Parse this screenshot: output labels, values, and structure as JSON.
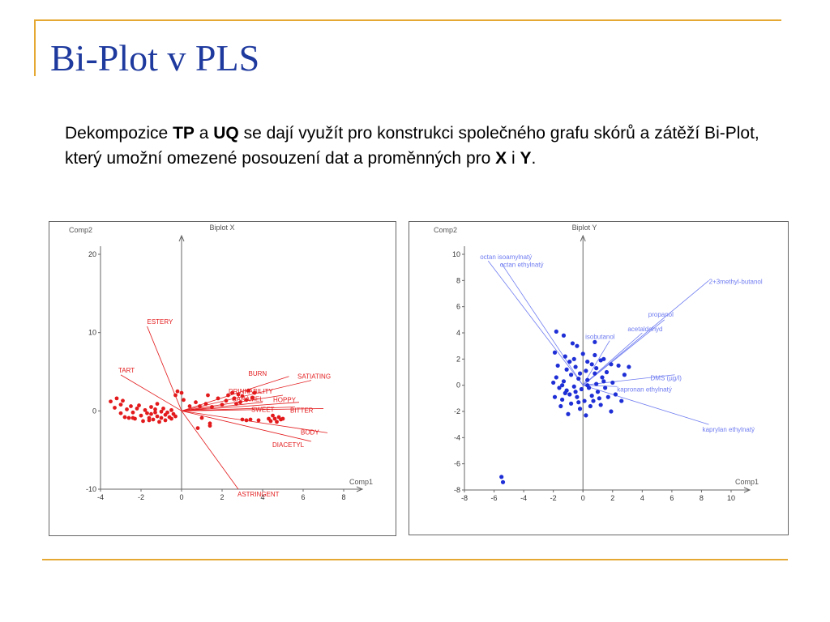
{
  "slide": {
    "title": "Bi-Plot v PLS",
    "text": {
      "p1": "Dekompozice ",
      "tp": "TP",
      "p2": " a ",
      "uq": "UQ",
      "p3": " se dají využít pro konstrukci společného grafu skórů a zátěží Bi-Plot, který umožní omezené posouzení dat a proměnných pro ",
      "x": "X",
      "p4": " i ",
      "y": "Y",
      "p5": "."
    }
  },
  "chart_data": [
    {
      "type": "scatter",
      "title": "Biplot X",
      "xlabel": "Comp1",
      "ylabel": "Comp2",
      "xlim": [
        -4,
        8
      ],
      "ylim": [
        -10,
        20
      ],
      "xticks": [
        -4,
        -2,
        0,
        2,
        4,
        6,
        8
      ],
      "yticks": [
        -10,
        0,
        10,
        20
      ],
      "color": "#e31a1c",
      "loadings": [
        {
          "name": "ESTERY",
          "x": -1.7,
          "y": 10.8
        },
        {
          "name": "TART",
          "x": -3.0,
          "y": 4.6
        },
        {
          "name": "BURN",
          "x": 5.3,
          "y": 4.4
        },
        {
          "name": "SATIATING",
          "x": 6.4,
          "y": 3.9
        },
        {
          "name": "DRINKABILITY",
          "x": 5.0,
          "y": 2.0
        },
        {
          "name": "CARAMEL",
          "x": 4.0,
          "y": 1.1
        },
        {
          "name": "HOPPY",
          "x": 5.8,
          "y": 1.1
        },
        {
          "name": "SWEET",
          "x": 5.6,
          "y": 0.5
        },
        {
          "name": "BITTER",
          "x": 7.0,
          "y": 0.3
        },
        {
          "name": "BODY",
          "x": 7.2,
          "y": -2.8
        },
        {
          "name": "DIACETYL",
          "x": 6.4,
          "y": -3.9
        },
        {
          "name": "ASTRINGENT",
          "x": 2.8,
          "y": -10.0
        }
      ],
      "scores": [
        {
          "x": -3.5,
          "y": 1.2
        },
        {
          "x": -3.3,
          "y": 0.4
        },
        {
          "x": -3.2,
          "y": 1.6
        },
        {
          "x": -3.0,
          "y": -0.3
        },
        {
          "x": -3.0,
          "y": 0.8
        },
        {
          "x": -2.9,
          "y": 1.3
        },
        {
          "x": -2.8,
          "y": -0.8
        },
        {
          "x": -2.7,
          "y": 0.2
        },
        {
          "x": -2.6,
          "y": -0.9
        },
        {
          "x": -2.5,
          "y": 0.6
        },
        {
          "x": -2.4,
          "y": -0.2
        },
        {
          "x": -2.3,
          "y": -1.0
        },
        {
          "x": -2.2,
          "y": 0.3
        },
        {
          "x": -2.1,
          "y": 0.7
        },
        {
          "x": -2.0,
          "y": -0.6
        },
        {
          "x": -1.9,
          "y": -1.3
        },
        {
          "x": -1.8,
          "y": 0.1
        },
        {
          "x": -1.7,
          "y": -0.3
        },
        {
          "x": -1.6,
          "y": -0.9
        },
        {
          "x": -1.5,
          "y": 0.5
        },
        {
          "x": -1.5,
          "y": -0.4
        },
        {
          "x": -1.4,
          "y": -1.1
        },
        {
          "x": -1.3,
          "y": -0.2
        },
        {
          "x": -1.3,
          "y": 0.2
        },
        {
          "x": -1.2,
          "y": -0.7
        },
        {
          "x": -1.1,
          "y": -1.4
        },
        {
          "x": -1.0,
          "y": -0.1
        },
        {
          "x": -1.0,
          "y": -0.9
        },
        {
          "x": -0.9,
          "y": 0.3
        },
        {
          "x": -0.8,
          "y": -0.5
        },
        {
          "x": -0.8,
          "y": -1.2
        },
        {
          "x": -0.7,
          "y": -0.2
        },
        {
          "x": -0.6,
          "y": -0.8
        },
        {
          "x": -0.5,
          "y": 0.1
        },
        {
          "x": -0.5,
          "y": -1.0
        },
        {
          "x": -0.4,
          "y": -0.4
        },
        {
          "x": -0.3,
          "y": -0.7
        },
        {
          "x": -0.3,
          "y": 2.0
        },
        {
          "x": -0.2,
          "y": 2.5
        },
        {
          "x": 0.0,
          "y": 2.3
        },
        {
          "x": 0.1,
          "y": 1.4
        },
        {
          "x": 0.4,
          "y": 0.6
        },
        {
          "x": 0.7,
          "y": 1.1
        },
        {
          "x": 0.9,
          "y": 0.6
        },
        {
          "x": 1.2,
          "y": 0.9
        },
        {
          "x": 1.3,
          "y": 2.0
        },
        {
          "x": 1.5,
          "y": 0.5
        },
        {
          "x": 1.4,
          "y": -1.6
        },
        {
          "x": 1.4,
          "y": -1.9
        },
        {
          "x": 1.8,
          "y": 1.6
        },
        {
          "x": 2.0,
          "y": 0.8
        },
        {
          "x": 2.2,
          "y": 1.3
        },
        {
          "x": 2.3,
          "y": 2.0
        },
        {
          "x": 2.5,
          "y": 2.3
        },
        {
          "x": 2.6,
          "y": 1.6
        },
        {
          "x": 2.7,
          "y": 0.9
        },
        {
          "x": 2.8,
          "y": 2.1
        },
        {
          "x": 2.9,
          "y": 1.1
        },
        {
          "x": 3.0,
          "y": 1.9
        },
        {
          "x": 3.2,
          "y": 1.4
        },
        {
          "x": 3.3,
          "y": 2.6
        },
        {
          "x": 3.5,
          "y": 1.7
        },
        {
          "x": 3.6,
          "y": 2.3
        },
        {
          "x": 3.0,
          "y": -1.1
        },
        {
          "x": 3.2,
          "y": -1.2
        },
        {
          "x": 3.4,
          "y": -1.1
        },
        {
          "x": 3.8,
          "y": -1.2
        },
        {
          "x": 4.3,
          "y": -1.0
        },
        {
          "x": 4.4,
          "y": -1.3
        },
        {
          "x": 4.5,
          "y": -0.6
        },
        {
          "x": 4.6,
          "y": -1.0
        },
        {
          "x": 4.7,
          "y": -1.4
        },
        {
          "x": 4.8,
          "y": -0.8
        },
        {
          "x": 4.9,
          "y": -1.1
        },
        {
          "x": 5.0,
          "y": -1.0
        },
        {
          "x": 1.0,
          "y": -0.9
        },
        {
          "x": 0.8,
          "y": -2.2
        },
        {
          "x": -1.6,
          "y": -1.2
        },
        {
          "x": -2.4,
          "y": -0.9
        },
        {
          "x": -1.2,
          "y": 0.9
        }
      ]
    },
    {
      "type": "scatter",
      "title": "Biplot Y",
      "xlabel": "Comp1",
      "ylabel": "Comp2",
      "xlim": [
        -8,
        10
      ],
      "ylim": [
        -8,
        10
      ],
      "xticks": [
        -8,
        -6,
        -4,
        -2,
        0,
        2,
        4,
        6,
        8,
        10
      ],
      "yticks": [
        -8,
        -6,
        -4,
        -2,
        0,
        2,
        4,
        6,
        8,
        10
      ],
      "color": "#1f2fd6",
      "loadings": [
        {
          "name": "octan isoamylnatý",
          "x": -6.4,
          "y": 9.5
        },
        {
          "name": "octan ethylnatý",
          "x": -5.5,
          "y": 9.3
        },
        {
          "name": "2+3methyl-butanol",
          "x": 8.5,
          "y": 8.0
        },
        {
          "name": "propanol",
          "x": 5.5,
          "y": 5.0
        },
        {
          "name": "acetaldehyd",
          "x": 4.0,
          "y": 4.0
        },
        {
          "name": "isobutanol",
          "x": 1.8,
          "y": 3.4
        },
        {
          "name": "DMS (µg/l)",
          "x": 6.2,
          "y": 0.8
        },
        {
          "name": "kapronan ethylnatý",
          "x": 2.3,
          "y": -0.1
        },
        {
          "name": "kaprylan ethylnatý",
          "x": 8.5,
          "y": -3.0
        }
      ],
      "scores": [
        {
          "x": -1.8,
          "y": 4.1
        },
        {
          "x": -1.3,
          "y": 3.8
        },
        {
          "x": -0.7,
          "y": 3.2
        },
        {
          "x": -0.4,
          "y": 3.0
        },
        {
          "x": -1.9,
          "y": 2.5
        },
        {
          "x": -1.2,
          "y": 2.2
        },
        {
          "x": -0.6,
          "y": 2.0
        },
        {
          "x": 0.0,
          "y": 2.4
        },
        {
          "x": 0.3,
          "y": 1.8
        },
        {
          "x": 0.8,
          "y": 2.3
        },
        {
          "x": 1.4,
          "y": 2.0
        },
        {
          "x": 1.9,
          "y": 1.6
        },
        {
          "x": -1.7,
          "y": 1.5
        },
        {
          "x": -1.1,
          "y": 1.2
        },
        {
          "x": -0.5,
          "y": 1.4
        },
        {
          "x": 0.2,
          "y": 1.1
        },
        {
          "x": 0.9,
          "y": 1.3
        },
        {
          "x": 1.6,
          "y": 1.0
        },
        {
          "x": 2.4,
          "y": 1.5
        },
        {
          "x": 3.1,
          "y": 1.4
        },
        {
          "x": 2.8,
          "y": 0.8
        },
        {
          "x": -1.8,
          "y": 0.6
        },
        {
          "x": -1.3,
          "y": 0.3
        },
        {
          "x": -0.8,
          "y": 0.8
        },
        {
          "x": -0.3,
          "y": 0.5
        },
        {
          "x": 0.3,
          "y": 0.4
        },
        {
          "x": 0.8,
          "y": 0.9
        },
        {
          "x": 1.3,
          "y": 0.6
        },
        {
          "x": -1.6,
          "y": -0.2
        },
        {
          "x": -1.1,
          "y": -0.4
        },
        {
          "x": -0.6,
          "y": -0.1
        },
        {
          "x": -0.1,
          "y": -0.3
        },
        {
          "x": 0.4,
          "y": -0.2
        },
        {
          "x": 0.9,
          "y": 0.1
        },
        {
          "x": 1.5,
          "y": -0.2
        },
        {
          "x": -1.9,
          "y": -0.9
        },
        {
          "x": -1.4,
          "y": -1.1
        },
        {
          "x": -0.9,
          "y": -0.7
        },
        {
          "x": -0.4,
          "y": -0.9
        },
        {
          "x": 0.1,
          "y": -1.2
        },
        {
          "x": 0.6,
          "y": -0.8
        },
        {
          "x": 1.1,
          "y": -1.0
        },
        {
          "x": 1.7,
          "y": -0.9
        },
        {
          "x": 2.2,
          "y": -0.7
        },
        {
          "x": 2.6,
          "y": -1.2
        },
        {
          "x": -1.5,
          "y": -1.6
        },
        {
          "x": -0.8,
          "y": -1.4
        },
        {
          "x": -0.2,
          "y": -1.8
        },
        {
          "x": 0.5,
          "y": -1.6
        },
        {
          "x": 1.2,
          "y": -1.5
        },
        {
          "x": 1.9,
          "y": -2.0
        },
        {
          "x": -1.0,
          "y": -2.2
        },
        {
          "x": 0.2,
          "y": -2.3
        },
        {
          "x": 0.8,
          "y": 3.3
        },
        {
          "x": -0.2,
          "y": 0.9
        },
        {
          "x": -0.9,
          "y": 1.8
        },
        {
          "x": 0.6,
          "y": 1.6
        },
        {
          "x": 1.2,
          "y": 1.9
        },
        {
          "x": -1.4,
          "y": 0.0
        },
        {
          "x": -2.0,
          "y": 0.2
        },
        {
          "x": -0.5,
          "y": -0.5
        },
        {
          "x": 0.3,
          "y": 0.0
        },
        {
          "x": 1.0,
          "y": -0.5
        },
        {
          "x": 1.4,
          "y": 0.3
        },
        {
          "x": -1.2,
          "y": -0.6
        },
        {
          "x": -0.3,
          "y": -1.3
        },
        {
          "x": 0.7,
          "y": -1.2
        },
        {
          "x": 2.0,
          "y": 0.2
        },
        {
          "x": -5.5,
          "y": -7.0
        },
        {
          "x": -5.4,
          "y": -7.4
        }
      ]
    }
  ]
}
